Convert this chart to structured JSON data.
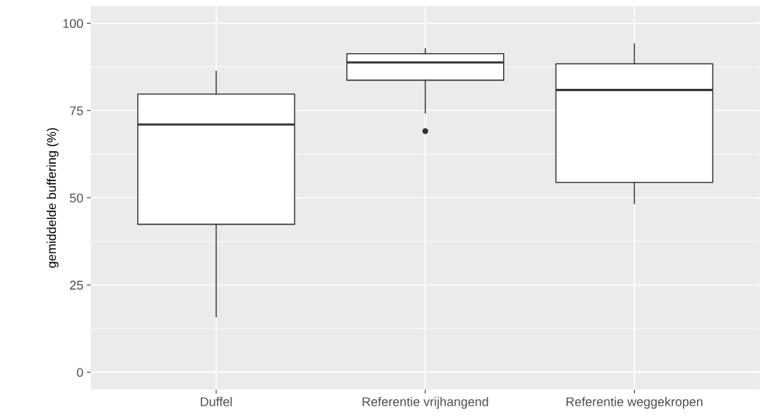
{
  "chart_data": {
    "type": "box",
    "ylabel": "gemiddelde buffering (%)",
    "categories": [
      "Duffel",
      "Referentie vrijhangend",
      "Referentie weggekropen"
    ],
    "boxes": [
      {
        "low": 15.9,
        "q1": 42.4,
        "median": 71.0,
        "q3": 79.7,
        "high": 86.3
      },
      {
        "low": 74.3,
        "q1": 83.7,
        "median": 88.8,
        "q3": 91.3,
        "high": 92.7,
        "outliers": [
          69.1
        ]
      },
      {
        "low": 48.3,
        "q1": 54.4,
        "median": 80.9,
        "q3": 88.4,
        "high": 94.1
      }
    ],
    "ylim": [
      -5,
      105
    ],
    "yticks": [
      0,
      25,
      50,
      75,
      100
    ],
    "grid": true
  }
}
